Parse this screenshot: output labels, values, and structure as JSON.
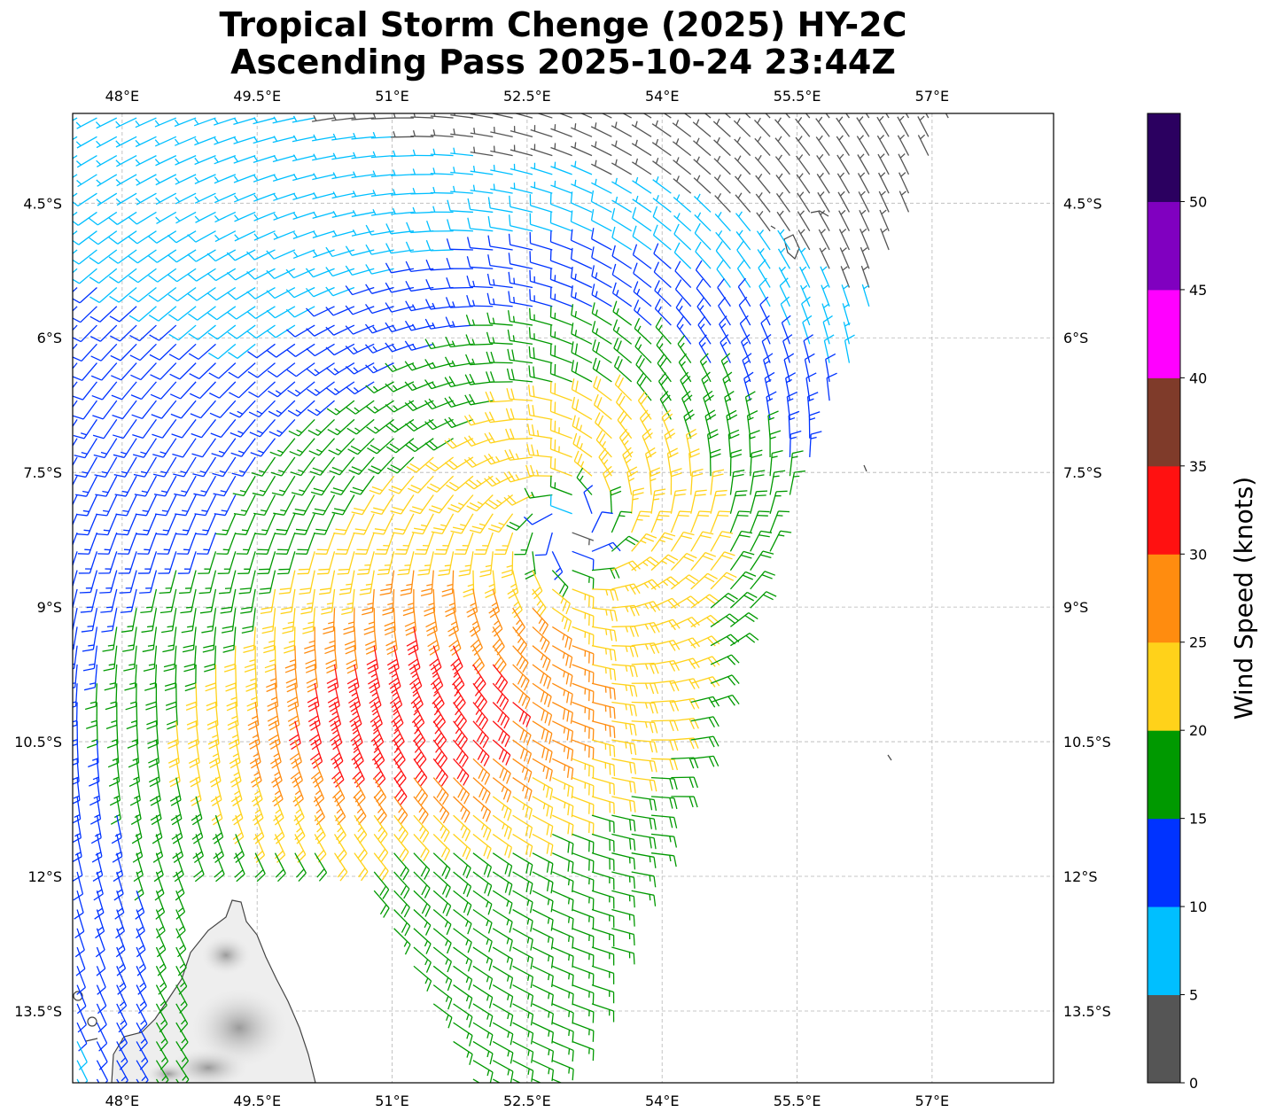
{
  "title": {
    "line1": "Tropical Storm Chenge (2025) HY-2C",
    "line2": "Ascending Pass 2025-10-24 23:44Z"
  },
  "map": {
    "lon_range": [
      47.45,
      58.35
    ],
    "lat_range": [
      -14.3,
      -3.5
    ],
    "lon_ticks": [
      {
        "value": 48,
        "label": "48°E"
      },
      {
        "value": 49.5,
        "label": "49.5°E"
      },
      {
        "value": 51,
        "label": "51°E"
      },
      {
        "value": 52.5,
        "label": "52.5°E"
      },
      {
        "value": 54,
        "label": "54°E"
      },
      {
        "value": 55.5,
        "label": "55.5°E"
      },
      {
        "value": 57,
        "label": "57°E"
      }
    ],
    "lat_ticks": [
      {
        "value": -4.5,
        "label": "4.5°S"
      },
      {
        "value": -6,
        "label": "6°S"
      },
      {
        "value": -7.5,
        "label": "7.5°S"
      },
      {
        "value": -9,
        "label": "9°S"
      },
      {
        "value": -10.5,
        "label": "10.5°S"
      },
      {
        "value": -12,
        "label": "12°S"
      },
      {
        "value": -13.5,
        "label": "13.5°S"
      }
    ],
    "storm_center": {
      "lon": 53.0,
      "lat": -8.15
    },
    "grid": true,
    "wind_barbs": "shown"
  },
  "colorbar": {
    "label": "Wind Speed (knots)",
    "ticks": [
      "0",
      "5",
      "10",
      "15",
      "20",
      "25",
      "30",
      "35",
      "40",
      "45",
      "50"
    ],
    "colors": [
      "#555555",
      "#00bfff",
      "#0033ff",
      "#009900",
      "#ffd21a",
      "#ff8c0f",
      "#ff1111",
      "#7f3b2a",
      "#ff00ff",
      "#8000c0",
      "#2b0060"
    ],
    "bin_size_kt": 5
  }
}
